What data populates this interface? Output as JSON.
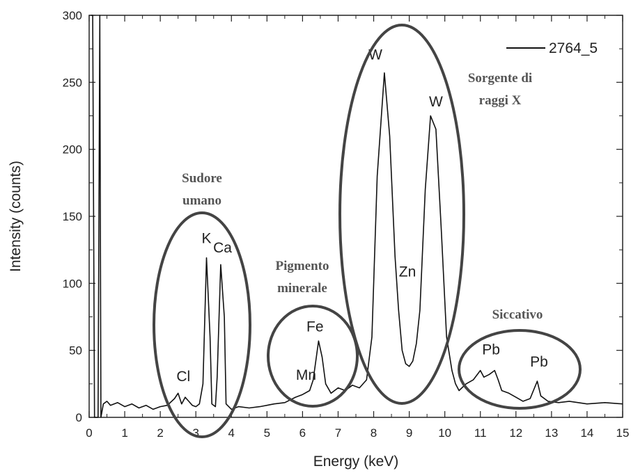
{
  "chart_data": {
    "type": "line",
    "xlabel": "Energy (keV)",
    "ylabel": "Intensity (counts)",
    "xlim": [
      0,
      15
    ],
    "ylim": [
      0,
      300
    ],
    "xticks": [
      0,
      1,
      2,
      3,
      4,
      5,
      6,
      7,
      8,
      9,
      10,
      11,
      12,
      13,
      14,
      15
    ],
    "yticks": [
      0,
      50,
      100,
      150,
      200,
      250,
      300
    ],
    "grid": false,
    "legend_position": "top-right",
    "series": [
      {
        "name": "2764_5",
        "color": "#111111",
        "points": [
          [
            0.05,
            300
          ],
          [
            0.1,
            300
          ],
          [
            0.15,
            0
          ],
          [
            0.25,
            0
          ],
          [
            0.3,
            300
          ],
          [
            0.33,
            0
          ],
          [
            0.4,
            10
          ],
          [
            0.5,
            12
          ],
          [
            0.6,
            9
          ],
          [
            0.8,
            11
          ],
          [
            1.0,
            8
          ],
          [
            1.2,
            10
          ],
          [
            1.4,
            7
          ],
          [
            1.6,
            9
          ],
          [
            1.8,
            6
          ],
          [
            2.0,
            8
          ],
          [
            2.2,
            9
          ],
          [
            2.4,
            14
          ],
          [
            2.5,
            18
          ],
          [
            2.6,
            10
          ],
          [
            2.7,
            15
          ],
          [
            2.8,
            12
          ],
          [
            2.9,
            9
          ],
          [
            3.0,
            8
          ],
          [
            3.1,
            10
          ],
          [
            3.2,
            25
          ],
          [
            3.3,
            119
          ],
          [
            3.4,
            60
          ],
          [
            3.45,
            10
          ],
          [
            3.55,
            8
          ],
          [
            3.6,
            30
          ],
          [
            3.7,
            114
          ],
          [
            3.8,
            75
          ],
          [
            3.85,
            10
          ],
          [
            4.0,
            6
          ],
          [
            4.2,
            8
          ],
          [
            4.5,
            7
          ],
          [
            4.8,
            8
          ],
          [
            5.0,
            9
          ],
          [
            5.2,
            10
          ],
          [
            5.5,
            11
          ],
          [
            5.8,
            15
          ],
          [
            6.0,
            17
          ],
          [
            6.2,
            20
          ],
          [
            6.3,
            28
          ],
          [
            6.45,
            57
          ],
          [
            6.55,
            45
          ],
          [
            6.65,
            25
          ],
          [
            6.8,
            18
          ],
          [
            7.0,
            22
          ],
          [
            7.2,
            20
          ],
          [
            7.4,
            24
          ],
          [
            7.6,
            22
          ],
          [
            7.8,
            28
          ],
          [
            7.95,
            60
          ],
          [
            8.1,
            180
          ],
          [
            8.3,
            257
          ],
          [
            8.45,
            210
          ],
          [
            8.6,
            120
          ],
          [
            8.7,
            80
          ],
          [
            8.8,
            50
          ],
          [
            8.9,
            40
          ],
          [
            9.0,
            38
          ],
          [
            9.1,
            42
          ],
          [
            9.2,
            55
          ],
          [
            9.3,
            80
          ],
          [
            9.45,
            170
          ],
          [
            9.6,
            225
          ],
          [
            9.75,
            215
          ],
          [
            9.9,
            140
          ],
          [
            10.05,
            60
          ],
          [
            10.2,
            35
          ],
          [
            10.3,
            25
          ],
          [
            10.4,
            20
          ],
          [
            10.6,
            25
          ],
          [
            10.8,
            28
          ],
          [
            11.0,
            35
          ],
          [
            11.1,
            30
          ],
          [
            11.25,
            32
          ],
          [
            11.4,
            35
          ],
          [
            11.5,
            28
          ],
          [
            11.6,
            20
          ],
          [
            11.8,
            18
          ],
          [
            12.0,
            15
          ],
          [
            12.2,
            12
          ],
          [
            12.4,
            14
          ],
          [
            12.6,
            27
          ],
          [
            12.7,
            16
          ],
          [
            12.9,
            12
          ],
          [
            13.2,
            11
          ],
          [
            13.5,
            12
          ],
          [
            14.0,
            10
          ],
          [
            14.5,
            11
          ],
          [
            15.0,
            10
          ]
        ]
      }
    ],
    "peak_labels": [
      {
        "text": "Cl",
        "x": 2.65,
        "y": 27
      },
      {
        "text": "K",
        "x": 3.3,
        "y": 130
      },
      {
        "text": "Ca",
        "x": 3.75,
        "y": 123
      },
      {
        "text": "Mn",
        "x": 6.1,
        "y": 28
      },
      {
        "text": "Fe",
        "x": 6.35,
        "y": 64
      },
      {
        "text": "W",
        "x": 8.05,
        "y": 267
      },
      {
        "text": "Zn",
        "x": 8.95,
        "y": 105
      },
      {
        "text": "W",
        "x": 9.75,
        "y": 232
      },
      {
        "text": "Pb",
        "x": 11.3,
        "y": 47
      },
      {
        "text": "Pb",
        "x": 12.65,
        "y": 38
      }
    ],
    "groups": [
      {
        "lines": [
          "Sudore",
          "umano"
        ]
      },
      {
        "lines": [
          "Pigmento",
          "minerale"
        ]
      },
      {
        "lines": [
          "Sorgente di",
          "raggi X"
        ]
      },
      {
        "lines": [
          "Siccativo"
        ]
      }
    ]
  }
}
